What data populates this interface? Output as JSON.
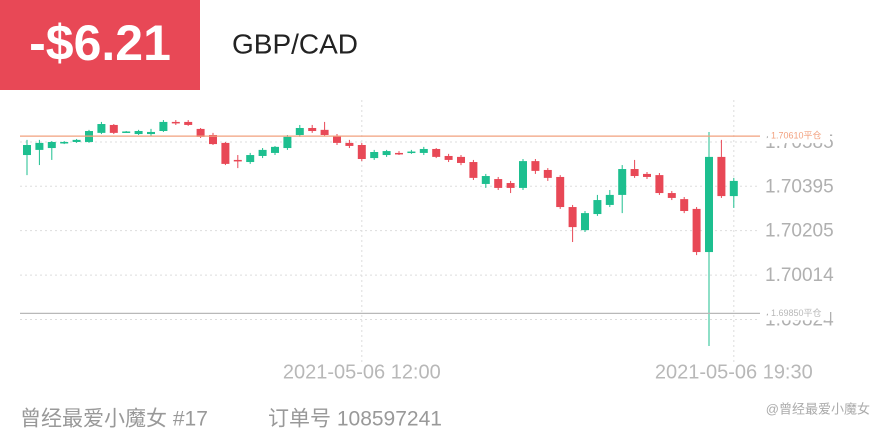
{
  "header": {
    "pnl": "-$6.21",
    "symbol": "GBP/CAD"
  },
  "footer": {
    "user": "曾经最爱小魔女 #17",
    "order": "订单号 108597241",
    "watermark": "@曾经最爱小魔女"
  },
  "chart_data": {
    "type": "candlestick",
    "categories": [
      null,
      null,
      null,
      null,
      null,
      null,
      null,
      null,
      null,
      null,
      null,
      null,
      null,
      null,
      null,
      null,
      null,
      null,
      null,
      null,
      null,
      null,
      null,
      null,
      null,
      null,
      null,
      "2021-05-06 12:00",
      null,
      null,
      null,
      null,
      null,
      null,
      null,
      null,
      null,
      null,
      null,
      null,
      null,
      null,
      null,
      null,
      null,
      null,
      null,
      null,
      null,
      null,
      null,
      null,
      null,
      null,
      null,
      null,
      null,
      "2021-05-06 19:30"
    ],
    "open": [
      1.70529,
      1.70551,
      1.70559,
      1.70581,
      1.70585,
      1.70585,
      1.70624,
      1.70658,
      1.70628,
      1.70619,
      1.70619,
      1.70632,
      1.70671,
      1.70671,
      1.70641,
      1.70615,
      1.70581,
      1.70508,
      1.70499,
      1.70525,
      1.70538,
      1.70559,
      1.70615,
      1.70645,
      1.70637,
      1.70611,
      1.70581,
      1.70572,
      1.70516,
      1.70529,
      1.70538,
      1.70542,
      1.70538,
      1.70555,
      1.70525,
      1.70521,
      1.70499,
      1.70405,
      1.70426,
      1.70409,
      1.70388,
      1.70503,
      1.70465,
      1.70435,
      1.70306,
      1.70207,
      1.70276,
      1.70315,
      1.70358,
      1.70469,
      1.70448,
      1.70443,
      1.70366,
      1.7034,
      1.70298,
      1.70113,
      1.70521,
      1.70353
    ],
    "high": [
      1.70594,
      1.70594,
      1.70589,
      1.70589,
      1.70598,
      1.70637,
      1.70671,
      1.70662,
      1.70632,
      1.70637,
      1.70641,
      1.70679,
      1.70679,
      1.70679,
      1.70645,
      1.70624,
      1.70585,
      1.70529,
      1.70538,
      1.70559,
      1.70568,
      1.70615,
      1.70658,
      1.70658,
      1.70671,
      1.70619,
      1.70594,
      1.70581,
      1.70551,
      1.70551,
      1.70546,
      1.70551,
      1.70564,
      1.70559,
      1.70534,
      1.70529,
      1.70508,
      1.70448,
      1.70435,
      1.70418,
      1.70512,
      1.70512,
      1.70473,
      1.70443,
      1.70315,
      1.70289,
      1.70358,
      1.70379,
      1.70486,
      1.70508,
      1.70456,
      1.70452,
      1.70375,
      1.70349,
      1.70306,
      1.70628,
      1.70594,
      1.70431
    ],
    "low": [
      1.70443,
      1.70486,
      1.70508,
      1.70576,
      1.70581,
      1.70581,
      1.70619,
      1.70619,
      1.70624,
      1.70615,
      1.70611,
      1.70628,
      1.70658,
      1.70654,
      1.70602,
      1.70572,
      1.70486,
      1.70473,
      1.70491,
      1.70516,
      1.70529,
      1.70551,
      1.70607,
      1.70624,
      1.70611,
      1.70572,
      1.70559,
      1.70503,
      1.70508,
      1.70521,
      1.70529,
      1.70534,
      1.70529,
      1.70516,
      1.70499,
      1.70486,
      1.70422,
      1.70388,
      1.70379,
      1.70366,
      1.70379,
      1.70448,
      1.70418,
      1.70298,
      1.70156,
      1.70199,
      1.70268,
      1.70306,
      1.7028,
      1.70431,
      1.70426,
      1.70358,
      1.70336,
      1.7028,
      1.701,
      1.6971,
      1.70345,
      1.70302
    ],
    "close": [
      1.70572,
      1.70581,
      1.70585,
      1.70585,
      1.70594,
      1.70632,
      1.70662,
      1.70624,
      1.7063,
      1.70632,
      1.70628,
      1.70671,
      1.70667,
      1.70658,
      1.70607,
      1.70576,
      1.70491,
      1.70503,
      1.70529,
      1.70551,
      1.70564,
      1.70607,
      1.70645,
      1.70632,
      1.70615,
      1.70581,
      1.70568,
      1.70512,
      1.70542,
      1.70546,
      1.70536,
      1.70544,
      1.70555,
      1.70521,
      1.70508,
      1.70495,
      1.70431,
      1.70439,
      1.70388,
      1.70388,
      1.70503,
      1.70461,
      1.70431,
      1.70306,
      1.7022,
      1.7028,
      1.70336,
      1.70358,
      1.70469,
      1.70439,
      1.70435,
      1.70366,
      1.70345,
      1.70289,
      1.70113,
      1.70521,
      1.70353,
      1.70418
    ],
    "up_color": "#1dbf8f",
    "down_color": "#e84856",
    "ylim": [
      1.69693,
      1.70765
    ],
    "yticks": [
      1.70585,
      1.70395,
      1.70205,
      1.70014,
      1.69824
    ],
    "grid": true,
    "lines": [
      {
        "value": 1.7061,
        "label": "1.70610平仓",
        "color": "#f2a07e"
      },
      {
        "value": 1.6985,
        "label": "1.69850平仓",
        "color": "#b8b8b8"
      }
    ]
  }
}
